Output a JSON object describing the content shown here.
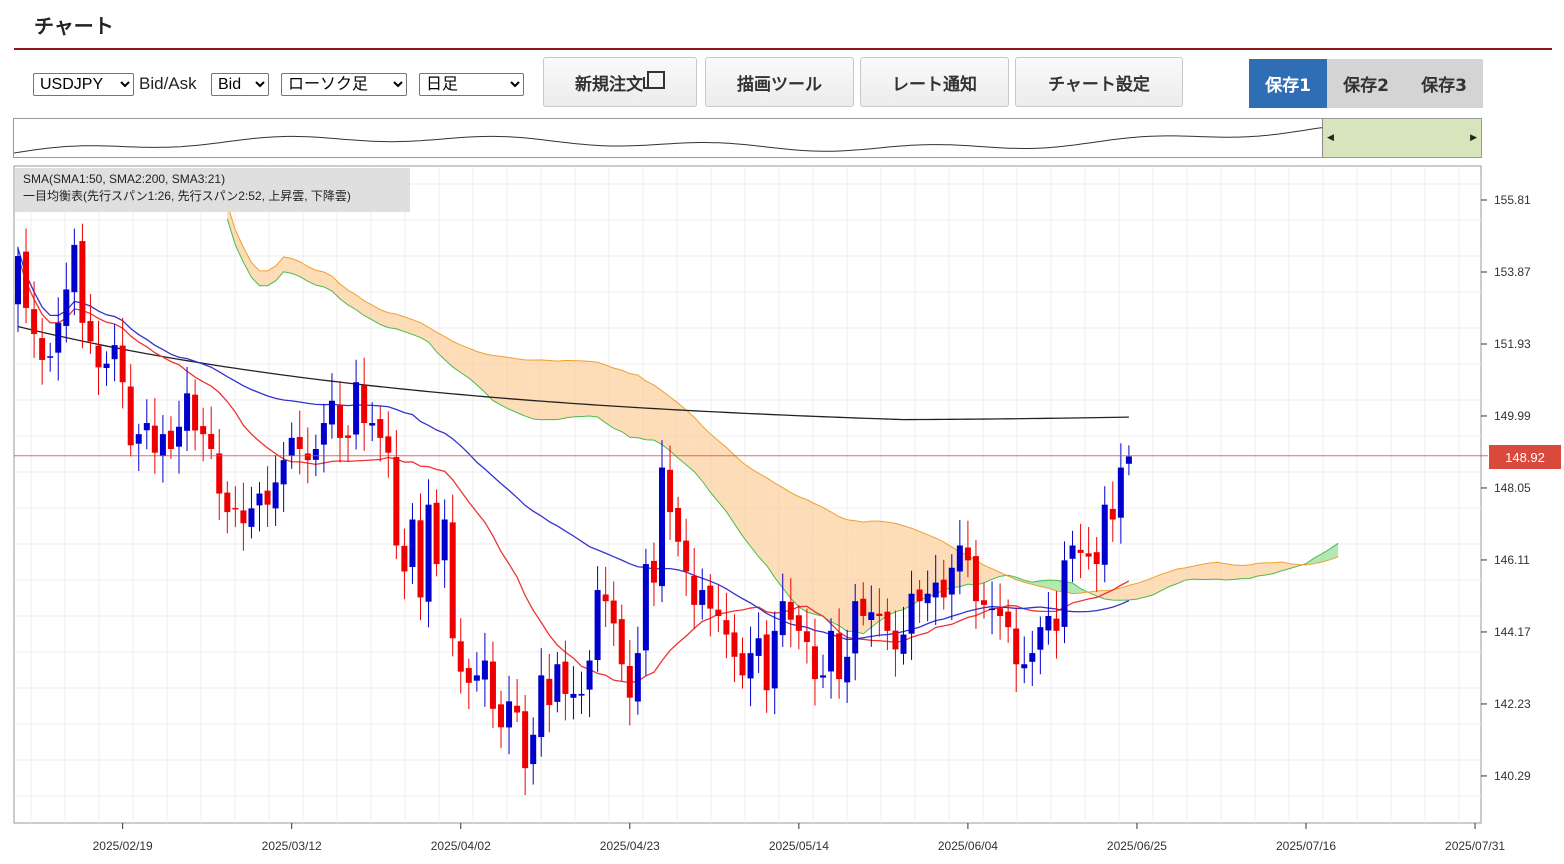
{
  "header": {
    "title": "チャート"
  },
  "toolbar": {
    "symbol": "USDJPY",
    "bidask_label": "Bid/Ask",
    "bidask": "Bid",
    "chart_type": "ローソク足",
    "period": "日足",
    "new_order": "新規注文",
    "draw_tool": "描画ツール",
    "rate_alert": "レート通知",
    "chart_settings": "チャート設定",
    "saves": [
      "保存1",
      "保存2",
      "保存3"
    ]
  },
  "colors": {
    "accent": "#2f6db5",
    "rule": "#8b1a1a",
    "up": "#0000cc",
    "down": "#ee0000",
    "sma1": "#3333cc",
    "sma2": "#222222",
    "sma3": "#ee3333",
    "cloud_up": "#98e098",
    "cloud_down": "#fcd0a0",
    "price_line": "#d94a3d"
  },
  "legend": {
    "line1": "SMA(SMA1:50, SMA2:200, SMA3:21)",
    "line2": "一目均衡表(先行スパン1:26, 先行スパン2:52, 上昇雲, 下降雲)"
  },
  "price": {
    "current": "148.92",
    "value": 148.92
  },
  "chart_data": {
    "type": "candlestick",
    "title": "",
    "ylim": [
      139.0,
      156.8
    ],
    "y_ticks": [
      "155.81",
      "153.87",
      "151.93",
      "149.99",
      "148.05",
      "146.11",
      "144.17",
      "142.23",
      "140.29"
    ],
    "x_ticks": [
      "2025/02/19",
      "2025/03/12",
      "2025/04/02",
      "2025/04/23",
      "2025/05/14",
      "2025/06/04",
      "2025/06/25",
      "2025/07/16",
      "2025/07/31"
    ],
    "x_tick_index": [
      13,
      34,
      55,
      76,
      97,
      118,
      139,
      160,
      181
    ],
    "candles_close": [
      154.3,
      152.9,
      152.2,
      151.5,
      151.6,
      152.5,
      153.4,
      154.6,
      152.5,
      152.0,
      151.3,
      151.4,
      151.9,
      150.9,
      149.2,
      149.5,
      149.8,
      149.0,
      149.5,
      149.1,
      149.7,
      150.6,
      149.6,
      149.5,
      149.1,
      147.9,
      147.4,
      147.5,
      147.1,
      147.5,
      147.9,
      147.6,
      148.2,
      148.8,
      149.4,
      149.1,
      148.8,
      149.1,
      149.8,
      150.4,
      149.4,
      149.4,
      150.9,
      149.8,
      149.8,
      149.4,
      149.0,
      146.5,
      145.8,
      147.2,
      145.1,
      147.6,
      146.0,
      147.2,
      144.0,
      143.1,
      142.8,
      143.0,
      143.4,
      142.1,
      141.6,
      142.3,
      142.0,
      140.5,
      141.4,
      143.0,
      142.2,
      143.3,
      142.5,
      142.5,
      142.5,
      143.4,
      145.3,
      145.0,
      144.4,
      143.3,
      142.4,
      143.6,
      146.0,
      145.5,
      148.6,
      147.4,
      146.6,
      145.8,
      144.9,
      145.3,
      144.8,
      144.6,
      144.1,
      143.5,
      143.0,
      143.6,
      144.0,
      142.6,
      144.2,
      145.0,
      144.5,
      144.2,
      143.9,
      142.9,
      143.0,
      144.2,
      142.9,
      143.5,
      145.0,
      144.6,
      144.7,
      144.6,
      144.2,
      143.7,
      144.1,
      145.2,
      145.0,
      145.2,
      145.5,
      145.1,
      145.9,
      146.5,
      146.1,
      145.0,
      144.9,
      144.8,
      144.6,
      144.3,
      143.3,
      143.3,
      143.6,
      144.3,
      144.6,
      144.2,
      146.1,
      146.5,
      146.3,
      146.2,
      146.0,
      147.6,
      147.2,
      148.6,
      148.9
    ]
  }
}
